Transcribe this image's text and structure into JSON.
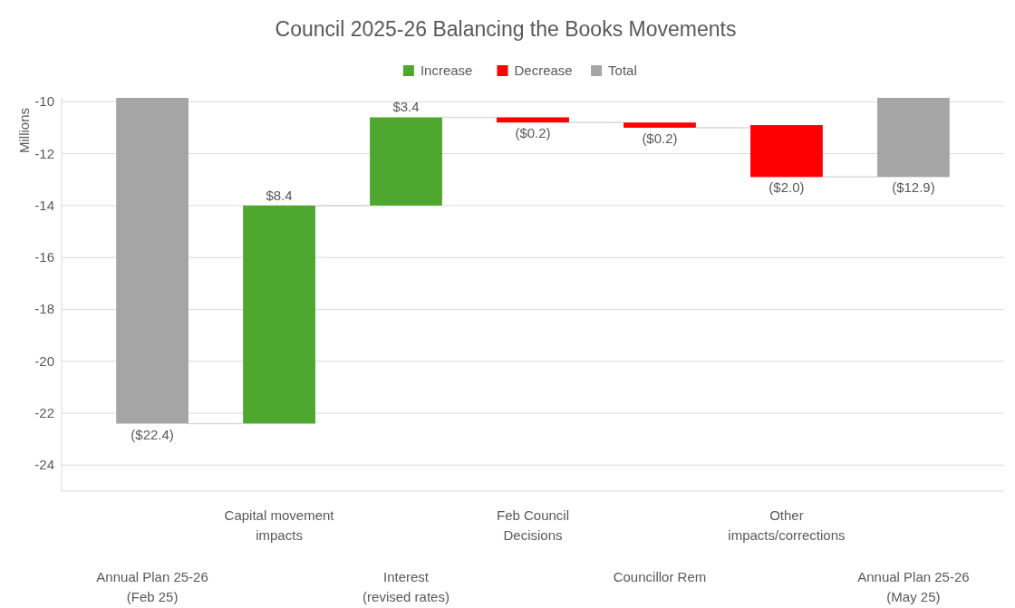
{
  "chart_data": {
    "type": "bar",
    "title": "Council 2025-26 Balancing the Books Movements",
    "ylabel": "Millions",
    "categories": [
      "Annual Plan 25-26\n(Feb 25)",
      "Capital movement\nimpacts",
      "Interest\n(revised rates)",
      "Feb Council\nDecisions",
      "Councillor Rem",
      "Other\nimpacts/corrections",
      "Annual Plan 25-26\n(May 25)"
    ],
    "series": [
      {
        "name": "Increase",
        "color": "#4ea72e",
        "values": [
          null,
          8.4,
          3.4,
          null,
          null,
          null,
          null
        ],
        "base": [
          null,
          -22.4,
          -14.0,
          null,
          null,
          null,
          null
        ],
        "value_labels": [
          null,
          "$8.4",
          "$3.4",
          null,
          null,
          null,
          null
        ]
      },
      {
        "name": "Decrease",
        "color": "#ff0000",
        "values": [
          null,
          null,
          null,
          -0.2,
          -0.2,
          -2.0,
          null
        ],
        "base": [
          null,
          null,
          null,
          -10.6,
          -10.8,
          -10.9,
          null
        ],
        "value_labels": [
          null,
          null,
          null,
          "($0.2)",
          "($0.2)",
          "($2.0)",
          null
        ]
      },
      {
        "name": "Total",
        "color": "#a5a5a5",
        "values": [
          -22.4,
          null,
          null,
          null,
          null,
          null,
          -12.9
        ],
        "value_labels": [
          "($22.4)",
          null,
          null,
          null,
          null,
          null,
          "($12.9)"
        ]
      }
    ],
    "ylim": [
      -25,
      -9.85
    ],
    "yticks": [
      -10,
      -12,
      -14,
      -16,
      -18,
      -20,
      -22,
      -24
    ],
    "grid": "y",
    "legend": "top"
  }
}
